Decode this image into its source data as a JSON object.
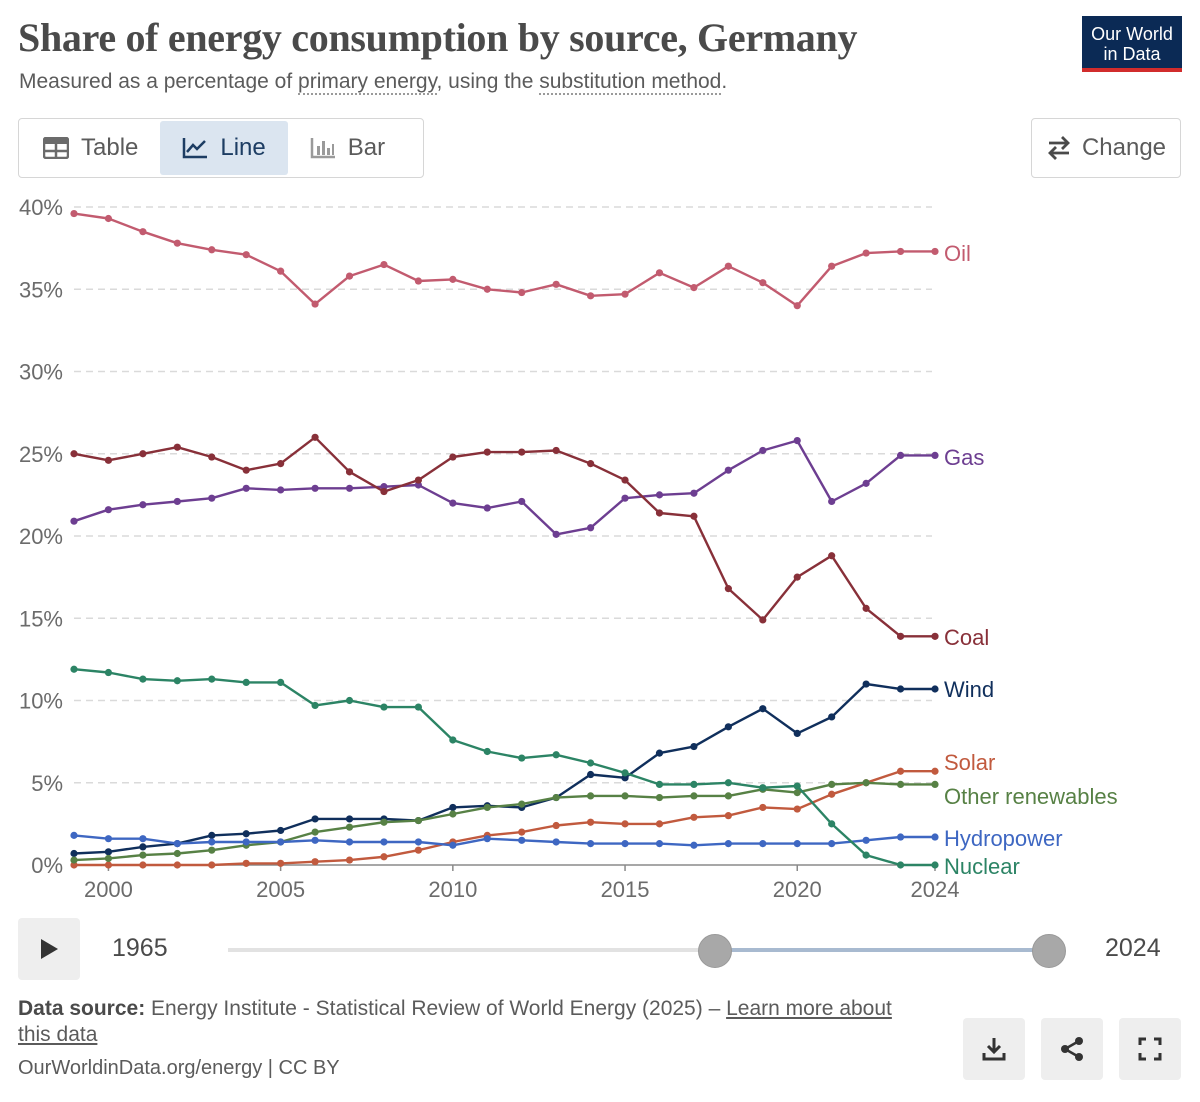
{
  "header": {
    "title": "Share of energy consumption by source, Germany",
    "subtitle_prefix": "Measured as a percentage of ",
    "subtitle_link1": "primary energy",
    "subtitle_mid": ", using the ",
    "subtitle_link2": "substitution method",
    "subtitle_suffix": ".",
    "logo_line1": "Our World",
    "logo_line2": "in Data"
  },
  "tabs": [
    {
      "label": "Table",
      "icon": "table-icon",
      "active": false
    },
    {
      "label": "Line",
      "icon": "line-chart-icon",
      "active": true
    },
    {
      "label": "Bar",
      "icon": "bar-chart-icon",
      "active": false
    }
  ],
  "change_label": "Change",
  "timeline": {
    "start": "1965",
    "end": "2024"
  },
  "footer": {
    "source_label": "Data source:",
    "source_text": " Energy Institute - Statistical Review of World Energy (2025) – ",
    "learn_more": "Learn more about this data",
    "credit": "OurWorldinData.org/energy | CC BY"
  },
  "chart_data": {
    "type": "line",
    "x": [
      1999,
      2000,
      2001,
      2002,
      2003,
      2004,
      2005,
      2006,
      2007,
      2008,
      2009,
      2010,
      2011,
      2012,
      2013,
      2014,
      2015,
      2016,
      2017,
      2018,
      2019,
      2020,
      2021,
      2022,
      2023,
      2024
    ],
    "xlim": [
      1999,
      2024
    ],
    "ylim": [
      0,
      40
    ],
    "x_ticks": [
      2000,
      2005,
      2010,
      2015,
      2020,
      2024
    ],
    "y_ticks": [
      {
        "value": 0,
        "label": "0%"
      },
      {
        "value": 5,
        "label": "5%"
      },
      {
        "value": 10,
        "label": "10%"
      },
      {
        "value": 15,
        "label": "15%"
      },
      {
        "value": 20,
        "label": "20%"
      },
      {
        "value": 25,
        "label": "25%"
      },
      {
        "value": 30,
        "label": "30%"
      },
      {
        "value": 35,
        "label": "35%"
      },
      {
        "value": 40,
        "label": "40%"
      }
    ],
    "grid": "horizontal-dashed",
    "legend": "inline-right",
    "series": [
      {
        "name": "Oil",
        "color": "#c25b6f",
        "values": [
          39.6,
          39.3,
          38.5,
          37.8,
          37.4,
          37.1,
          36.1,
          34.1,
          35.8,
          36.5,
          35.5,
          35.6,
          35.0,
          34.8,
          35.3,
          34.6,
          34.7,
          36.0,
          35.1,
          36.4,
          35.4,
          34.0,
          36.4,
          37.2,
          37.3,
          37.3
        ]
      },
      {
        "name": "Gas",
        "color": "#6d3e91",
        "values": [
          20.9,
          21.6,
          21.9,
          22.1,
          22.3,
          22.9,
          22.8,
          22.9,
          22.9,
          23.0,
          23.1,
          22.0,
          21.7,
          22.1,
          20.1,
          20.5,
          22.3,
          22.5,
          22.6,
          24.0,
          25.2,
          25.8,
          22.1,
          23.2,
          24.9,
          24.9
        ]
      },
      {
        "name": "Coal",
        "color": "#883039",
        "values": [
          25.0,
          24.6,
          25.0,
          25.4,
          24.8,
          24.0,
          24.4,
          26.0,
          23.9,
          22.7,
          23.4,
          24.8,
          25.1,
          25.1,
          25.2,
          24.4,
          23.4,
          21.4,
          21.2,
          16.8,
          14.9,
          17.5,
          18.8,
          15.6,
          13.9,
          13.9
        ]
      },
      {
        "name": "Wind",
        "color": "#102f5c",
        "values": [
          0.7,
          0.8,
          1.1,
          1.3,
          1.8,
          1.9,
          2.1,
          2.8,
          2.8,
          2.8,
          2.7,
          3.5,
          3.6,
          3.5,
          4.1,
          5.5,
          5.3,
          6.8,
          7.2,
          8.4,
          9.5,
          8.0,
          9.0,
          11.0,
          10.7,
          10.7
        ]
      },
      {
        "name": "Solar",
        "color": "#c15a3e",
        "values": [
          0.0,
          0.0,
          0.0,
          0.0,
          0.0,
          0.1,
          0.1,
          0.2,
          0.3,
          0.5,
          0.9,
          1.4,
          1.8,
          2.0,
          2.4,
          2.6,
          2.5,
          2.5,
          2.9,
          3.0,
          3.5,
          3.4,
          4.3,
          5.0,
          5.7,
          5.7
        ]
      },
      {
        "name": "Other renewables",
        "color": "#578145",
        "values": [
          0.3,
          0.4,
          0.6,
          0.7,
          0.9,
          1.2,
          1.4,
          2.0,
          2.3,
          2.6,
          2.7,
          3.1,
          3.5,
          3.7,
          4.1,
          4.2,
          4.2,
          4.1,
          4.2,
          4.2,
          4.6,
          4.4,
          4.9,
          5.0,
          4.9,
          4.9
        ]
      },
      {
        "name": "Hydropower",
        "color": "#3e67c2",
        "values": [
          1.8,
          1.6,
          1.6,
          1.3,
          1.4,
          1.4,
          1.4,
          1.5,
          1.4,
          1.4,
          1.4,
          1.2,
          1.6,
          1.5,
          1.4,
          1.3,
          1.3,
          1.3,
          1.2,
          1.3,
          1.3,
          1.3,
          1.3,
          1.5,
          1.7,
          1.7
        ]
      },
      {
        "name": "Nuclear",
        "color": "#2c8465",
        "values": [
          11.9,
          11.7,
          11.3,
          11.2,
          11.3,
          11.1,
          11.1,
          9.7,
          10.0,
          9.6,
          9.6,
          7.6,
          6.9,
          6.5,
          6.7,
          6.2,
          5.6,
          4.9,
          4.9,
          5.0,
          4.7,
          4.8,
          2.5,
          0.6,
          0.0,
          0.0
        ]
      }
    ]
  }
}
